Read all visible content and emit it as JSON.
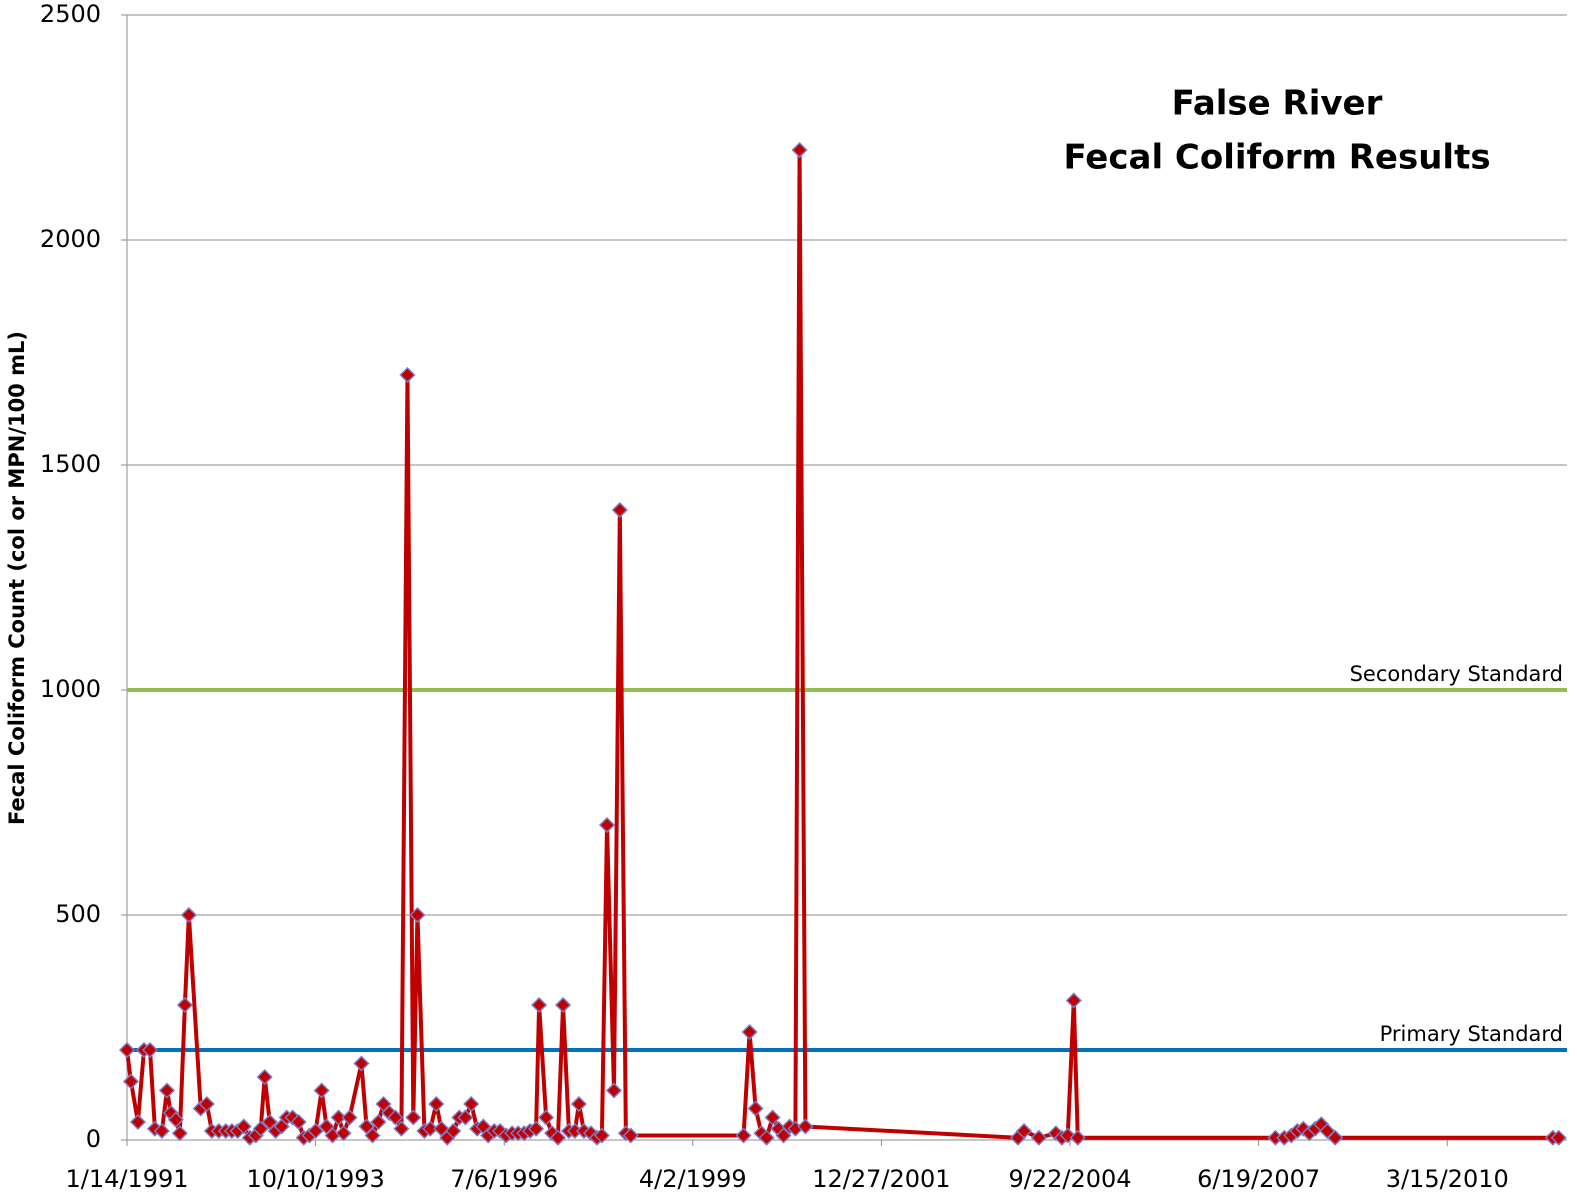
{
  "chart_data": {
    "type": "line",
    "title": [
      "False River",
      "Fecal Coliform Results"
    ],
    "y_label": "Fecal Coliform Count (col or MPN/100 mL)",
    "xlim": [
      33252,
      40887
    ],
    "xticks": [
      {
        "value": 33252,
        "label": "1/14/1991"
      },
      {
        "value": 34252,
        "label": "10/10/1993"
      },
      {
        "value": 35252,
        "label": "7/6/1996"
      },
      {
        "value": 36252,
        "label": "4/2/1999"
      },
      {
        "value": 37252,
        "label": "12/27/2001"
      },
      {
        "value": 38252,
        "label": "9/22/2004"
      },
      {
        "value": 39252,
        "label": "6/19/2007"
      },
      {
        "value": 40252,
        "label": "3/15/2010"
      }
    ],
    "ylim": [
      0,
      2500
    ],
    "yticks": [
      0,
      500,
      1000,
      1500,
      2000,
      2500
    ],
    "grid": true,
    "x": [
      33252,
      33273,
      33310,
      33342,
      33374,
      33400,
      33437,
      33464,
      33485,
      33511,
      33532,
      33559,
      33580,
      33643,
      33675,
      33702,
      33739,
      33776,
      33808,
      33839,
      33871,
      33903,
      33935,
      33961,
      33982,
      34009,
      34040,
      34072,
      34099,
      34130,
      34162,
      34189,
      34220,
      34252,
      34284,
      34310,
      34342,
      34374,
      34400,
      34432,
      34495,
      34522,
      34554,
      34585,
      34612,
      34643,
      34675,
      34707,
      34739,
      34770,
      34792,
      34829,
      34860,
      34892,
      34919,
      34950,
      34982,
      35014,
      35046,
      35077,
      35109,
      35141,
      35167,
      35199,
      35230,
      35262,
      35294,
      35326,
      35358,
      35389,
      35421,
      35437,
      35474,
      35506,
      35537,
      35564,
      35595,
      35627,
      35648,
      35675,
      35712,
      35744,
      35770,
      35797,
      35834,
      35865,
      35897,
      35923,
      36521,
      36553,
      36585,
      36616,
      36643,
      36675,
      36706,
      36733,
      36765,
      36796,
      36818,
      36849,
      37976,
      38008,
      38087,
      38177,
      38209,
      38240,
      38272,
      38293,
      39341,
      39388,
      39425,
      39457,
      39489,
      39521,
      39552,
      39584,
      39616,
      39658,
      40812,
      40843
    ],
    "series": [
      {
        "color": "#c00000",
        "marker_edge": "#7b7bc8",
        "values": [
          200,
          130,
          40,
          200,
          200,
          25,
          20,
          110,
          60,
          45,
          15,
          300,
          500,
          70,
          80,
          20,
          20,
          20,
          20,
          20,
          30,
          5,
          10,
          25,
          140,
          40,
          20,
          30,
          50,
          50,
          40,
          5,
          10,
          20,
          110,
          30,
          10,
          50,
          15,
          50,
          170,
          30,
          10,
          40,
          80,
          60,
          50,
          25,
          1700,
          50,
          500,
          20,
          25,
          80,
          25,
          5,
          20,
          50,
          50,
          80,
          25,
          30,
          10,
          20,
          20,
          10,
          15,
          15,
          15,
          20,
          25,
          300,
          50,
          15,
          5,
          300,
          20,
          20,
          80,
          20,
          15,
          5,
          10,
          700,
          110,
          1400,
          15,
          10,
          10,
          240,
          70,
          15,
          5,
          50,
          25,
          10,
          30,
          25,
          2200,
          30,
          5,
          20,
          5,
          15,
          5,
          10,
          310,
          5,
          5,
          5,
          10,
          20,
          25,
          15,
          25,
          35,
          20,
          5,
          5,
          5
        ]
      }
    ],
    "reference_lines": [
      {
        "name": "Secondary Standard",
        "value": 1000,
        "color": "#92c050"
      },
      {
        "name": "Primary Standard",
        "value": 200,
        "color": "#0070c0"
      }
    ]
  }
}
